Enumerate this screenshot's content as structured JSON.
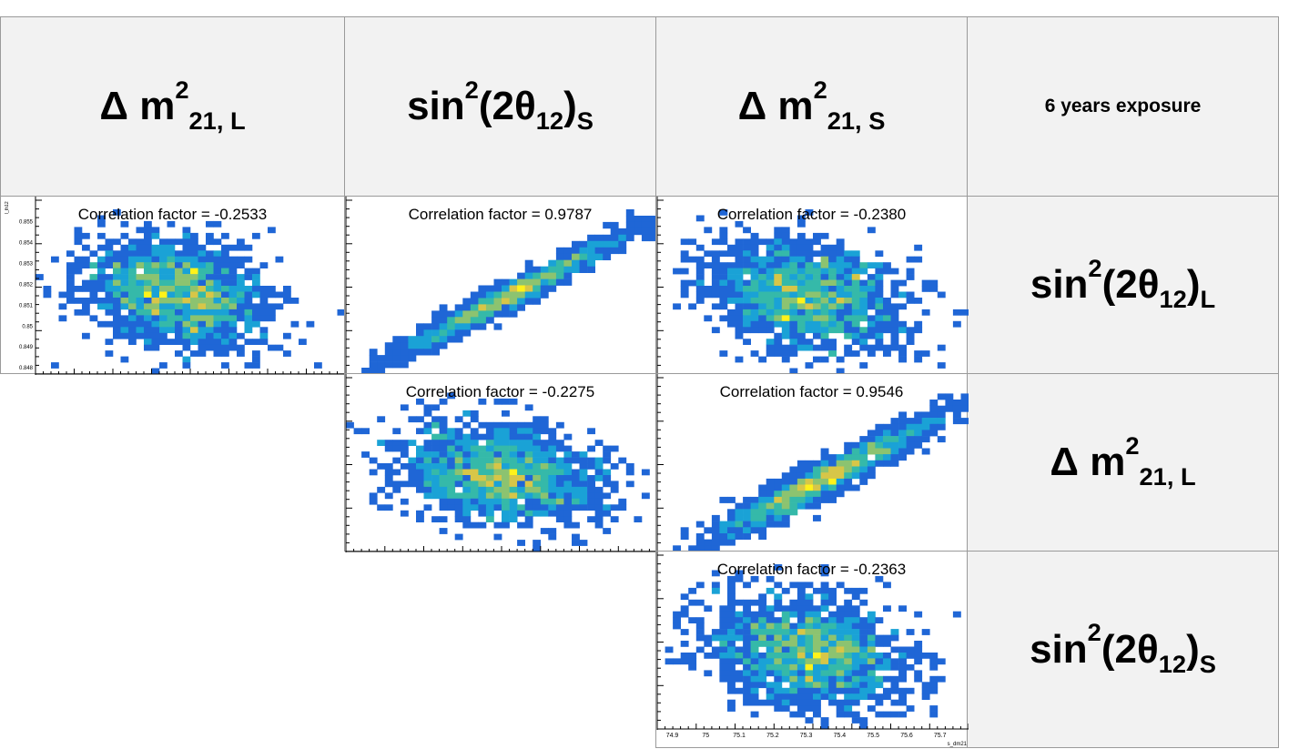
{
  "headers": {
    "col1": {
      "base": "Δ m",
      "sup": "2",
      "sub": "21, L"
    },
    "col2": {
      "base": "sin",
      "sup": "2",
      "mid": "(2θ",
      "sub": "12",
      "end": ")",
      "sub2": "S"
    },
    "col3": {
      "base": "Δ m",
      "sup": "2",
      "sub": "21, S"
    },
    "exposure": "6 years exposure",
    "row1": {
      "base": "sin",
      "sup": "2",
      "mid": "(2θ",
      "sub": "12",
      "end": ")",
      "sub2": "L"
    },
    "row2": {
      "base": "Δ m",
      "sup": "2",
      "sub": "21, L"
    },
    "row3": {
      "base": "sin",
      "sup": "2",
      "mid": "(2θ",
      "sub": "12",
      "end": ")",
      "sub2": "S"
    }
  },
  "colors": {
    "header_bg": "#f2f2f2",
    "palette": [
      "#1f2a9c",
      "#1f66d6",
      "#1aa2d6",
      "#35b9a9",
      "#8cc370",
      "#d7c648",
      "#fff21a"
    ]
  },
  "chart_data": [
    {
      "type": "heatmap",
      "id": "p11",
      "correlation_label": "Correlation factor = -0.2533",
      "correlation": -0.2533,
      "ylabel": "l_th12",
      "y_ticks": [
        "0.855",
        "0.854",
        "0.853",
        "0.852",
        "0.851",
        "0.85",
        "0.849",
        "0.848"
      ],
      "ylim": [
        0.8477,
        0.8556
      ]
    },
    {
      "type": "heatmap",
      "id": "p12",
      "correlation_label": "Correlation factor = 0.9787",
      "correlation": 0.9787
    },
    {
      "type": "heatmap",
      "id": "p13",
      "correlation_label": "Correlation factor = -0.2380",
      "correlation": -0.238
    },
    {
      "type": "heatmap",
      "id": "p22",
      "correlation_label": "Correlation factor = -0.2275",
      "correlation": -0.2275
    },
    {
      "type": "heatmap",
      "id": "p23",
      "correlation_label": "Correlation factor = 0.9546",
      "correlation": 0.9546
    },
    {
      "type": "heatmap",
      "id": "p33",
      "correlation_label": "Correlation factor = -0.2363",
      "correlation": -0.2363,
      "xlabel": "s_dm21",
      "x_ticks": [
        "74.9",
        "75",
        "75.1",
        "75.2",
        "75.3",
        "75.4",
        "75.5",
        "75.6",
        "75.7"
      ],
      "xlim": [
        74.855,
        75.785
      ]
    }
  ]
}
